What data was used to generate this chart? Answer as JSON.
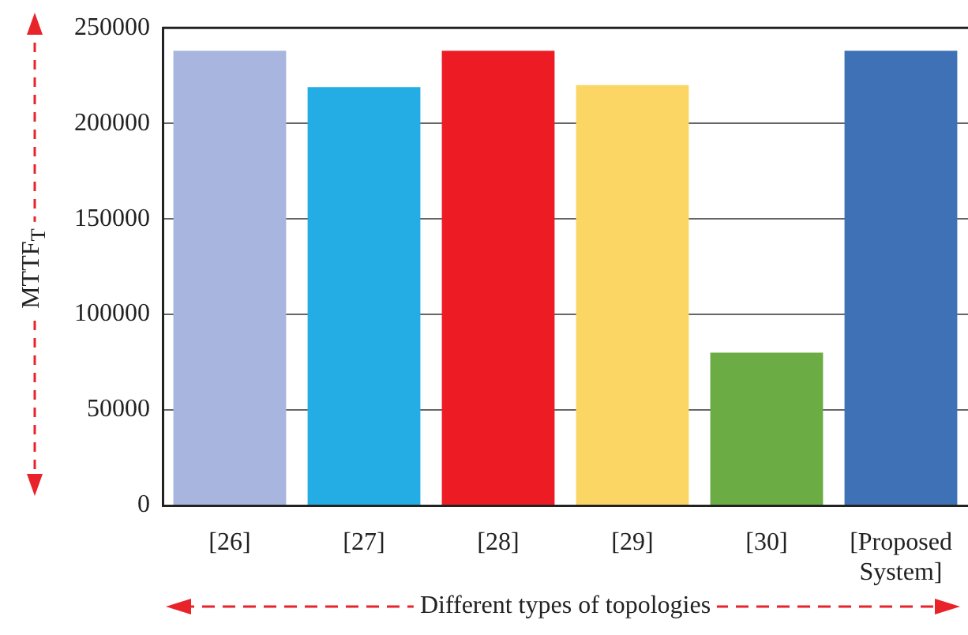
{
  "chart_data": {
    "type": "bar",
    "xlabel": "Different types of topologies",
    "ylabel": "MTTF$_{T}$",
    "categories": [
      "[26]",
      "[27]",
      "[28]",
      "[29]",
      "[30]",
      "[Proposed System]"
    ],
    "values": [
      238000,
      219000,
      238000,
      220000,
      80000,
      238000
    ],
    "colors": [
      "#a8b6df",
      "#24ade4",
      "#ed1c24",
      "#fcd664",
      "#6cac44",
      "#3e71b6"
    ],
    "ylim": [
      0,
      250000
    ],
    "yticks": [
      0,
      50000,
      100000,
      150000,
      200000,
      250000
    ],
    "grid": "y"
  }
}
